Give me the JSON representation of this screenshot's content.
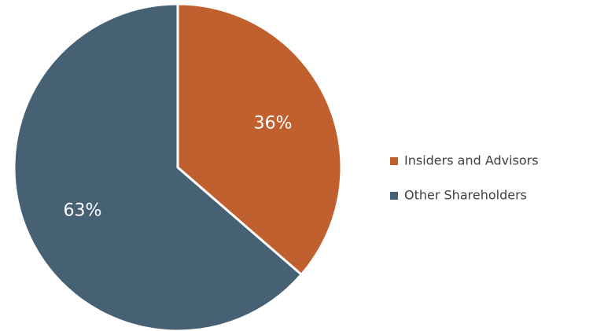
{
  "chart_data": {
    "type": "pie",
    "title": "",
    "legend_position": "right",
    "slices": [
      {
        "name": "Insiders and Advisors",
        "value": 36,
        "label": "36%",
        "color": "#c0602f"
      },
      {
        "name": "Other Shareholders",
        "value": 63,
        "label": "63%",
        "color": "#466173"
      }
    ]
  }
}
